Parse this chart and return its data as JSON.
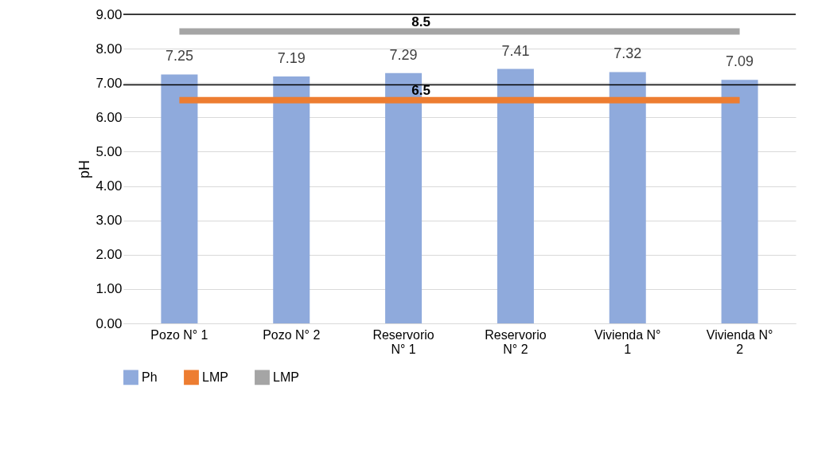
{
  "chart_data": {
    "type": "bar",
    "ylabel": "pH",
    "categories": [
      "Pozo N° 1",
      "Pozo N° 2",
      "Reservorio N° 1",
      "Reservorio N° 2",
      "Vivienda N° 1",
      "Vivienda N° 2"
    ],
    "series": [
      {
        "name": "Ph",
        "color": "#8faadc",
        "values": [
          7.25,
          7.19,
          7.29,
          7.41,
          7.32,
          7.09
        ],
        "value_labels": [
          "7.25",
          "7.19",
          "7.29",
          "7.41",
          "7.32",
          "7.09"
        ]
      },
      {
        "name": "LMP",
        "type": "line",
        "color": "#ed7d31",
        "values": [
          6.5,
          6.5,
          6.5,
          6.5,
          6.5,
          6.5
        ],
        "value_labels": [
          null,
          null,
          "6.5",
          null,
          null,
          null
        ]
      },
      {
        "name": "LMP",
        "type": "line",
        "color": "#a5a5a5",
        "values": [
          8.5,
          8.5,
          8.5,
          8.5,
          8.5,
          8.5
        ],
        "value_labels": [
          null,
          null,
          "8.5",
          null,
          null,
          null
        ]
      }
    ],
    "ylim": [
      0,
      9
    ],
    "yticks": [
      {
        "value": 0,
        "label": "0.00"
      },
      {
        "value": 1,
        "label": "1.00"
      },
      {
        "value": 2,
        "label": "2.00"
      },
      {
        "value": 3,
        "label": "3.00"
      },
      {
        "value": 4,
        "label": "4.00"
      },
      {
        "value": 5,
        "label": "5.00"
      },
      {
        "value": 6,
        "label": "6.00"
      },
      {
        "value": 7,
        "label": "7.00"
      },
      {
        "value": 8,
        "label": "8.00"
      },
      {
        "value": 9,
        "label": "9.00"
      }
    ],
    "ref_lines": [
      {
        "axis": "y",
        "value": 9.0,
        "color": "#000000"
      },
      {
        "axis": "y",
        "value": 6.95,
        "color": "#000000"
      }
    ],
    "grid": "y",
    "legend": "bottom"
  }
}
